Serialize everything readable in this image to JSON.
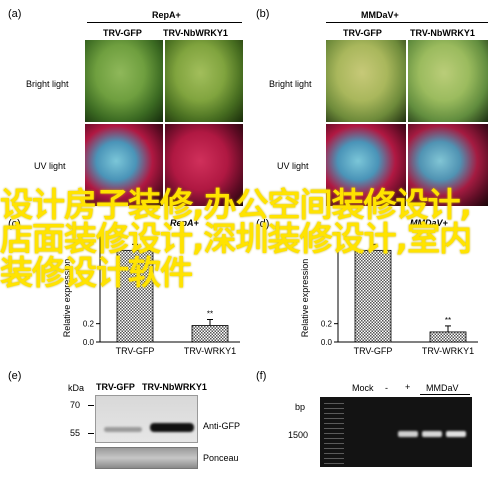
{
  "panels": {
    "a": {
      "label": "(a)",
      "title": "RepA+",
      "col1": "TRV-GFP",
      "col2": "TRV-NbWRKY1",
      "row1": "Bright light",
      "row2": "UV light"
    },
    "b": {
      "label": "(b)",
      "title": "MMDaV+",
      "col1": "TRV-GFP",
      "col2": "TRV-NbWRKY1",
      "row1": "Bright light",
      "row2": "UV light"
    },
    "c": {
      "label": "(c)",
      "title": "RepA+",
      "ylabel": "Relative expression",
      "cats": [
        "TRV-GFP",
        "TRV-WRKY1"
      ],
      "sig": "**"
    },
    "d": {
      "label": "(d)",
      "title": "MMDaV+",
      "ylabel": "Relative expression",
      "cats": [
        "TRV-GFP",
        "TRV-WRKY1"
      ],
      "sig": "**"
    },
    "e": {
      "label": "(e)",
      "kda": "kDa",
      "lane1": "TRV-GFP",
      "lane2": "TRV-NbWRKY1",
      "m70": "70",
      "m55": "55",
      "band1": "Anti-GFP",
      "band2": "Ponceau"
    },
    "f": {
      "label": "(f)",
      "bp": "bp",
      "bp1500": "1500",
      "mock": "Mock",
      "minus": "-",
      "plus": "+",
      "mmdav": "MMDaV"
    }
  },
  "chart_data": [
    {
      "type": "bar",
      "title": "",
      "categories": [
        "TRV-GFP",
        "TRV-WRKY1"
      ],
      "values": [
        1.0,
        0.18
      ],
      "ylabel": "Relative expression",
      "ylim": [
        0,
        1.2
      ],
      "yticks": [
        "0",
        "0.2",
        "0.4",
        "0.6",
        "0.8",
        "1.0",
        "1.2"
      ],
      "visible_yticks": [
        "0.2",
        "0.0"
      ],
      "annotation": "**"
    },
    {
      "type": "bar",
      "title": "",
      "categories": [
        "TRV-GFP",
        "TRV-WRKY1"
      ],
      "values": [
        1.0,
        0.11
      ],
      "ylabel": "Relative expression",
      "ylim": [
        0,
        1.2
      ],
      "yticks": [
        "0.2",
        "0.0"
      ],
      "annotation": "**"
    }
  ],
  "watermark": "设计房子装修,办公空间装修设计,店面装修设计,深圳装修设计,室内装修设计软件"
}
